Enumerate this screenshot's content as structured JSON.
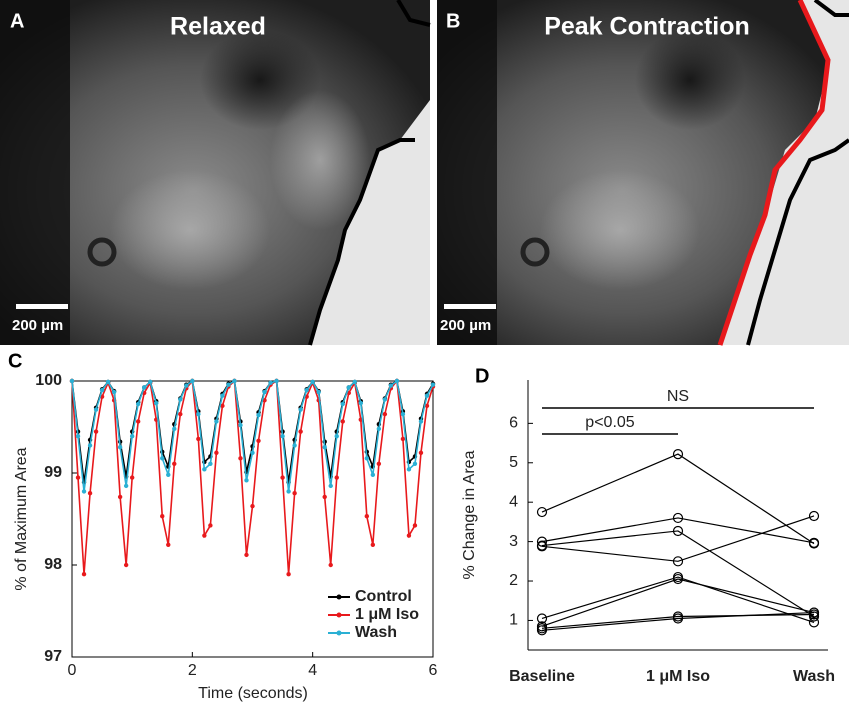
{
  "images": [
    {
      "label": "A",
      "title": "Relaxed",
      "scale_bar": "200 µm"
    },
    {
      "label": "B",
      "title": "Peak Contraction",
      "scale_bar": "200 µm"
    }
  ],
  "chart_data": [
    {
      "type": "line",
      "panel": "C",
      "xlabel": "Time (seconds)",
      "ylabel": "% of Maximum Area",
      "x": [
        0,
        0.1,
        0.2,
        0.3,
        0.4,
        0.5,
        0.6,
        0.7,
        0.8,
        0.9,
        1.0,
        1.1,
        1.2,
        1.3,
        1.4,
        1.5,
        1.6,
        1.7,
        1.8,
        1.9,
        2.0,
        2.1,
        2.2,
        2.3,
        2.4,
        2.5,
        2.6,
        2.7,
        2.8,
        2.9,
        3.0,
        3.1,
        3.2,
        3.3,
        3.4,
        3.5,
        3.6,
        3.7,
        3.8,
        3.9,
        4.0,
        4.1,
        4.2,
        4.3,
        4.4,
        4.5,
        4.6,
        4.7,
        4.8,
        4.9,
        5.0,
        5.1,
        5.2,
        5.3,
        5.4,
        5.5,
        5.6,
        5.7,
        5.8,
        5.9,
        6.0
      ],
      "series": [
        {
          "name": "Control",
          "color": "#000000",
          "values": [
            100,
            99.45,
            98.9,
            99.36,
            99.71,
            99.91,
            99.99,
            99.89,
            99.34,
            98.96,
            99.45,
            99.77,
            99.93,
            99.99,
            99.78,
            99.23,
            99.07,
            99.53,
            99.81,
            99.96,
            100,
            99.67,
            99.12,
            99.18,
            99.59,
            99.86,
            99.97,
            100,
            99.56,
            99.01,
            99.29,
            99.66,
            99.89,
            99.98,
            100,
            99.45,
            98.9,
            99.36,
            99.71,
            99.91,
            99.99,
            99.89,
            99.34,
            98.96,
            99.45,
            99.77,
            99.93,
            99.99,
            99.78,
            99.23,
            99.07,
            99.53,
            99.81,
            99.96,
            100,
            99.67,
            99.12,
            99.18,
            99.59,
            99.86,
            99.97
          ]
        },
        {
          "name": "1 μM Iso",
          "color": "#e8191c",
          "values": [
            100,
            98.95,
            97.9,
            98.78,
            99.45,
            99.83,
            99.98,
            99.79,
            98.74,
            98.0,
            98.95,
            99.56,
            99.87,
            99.98,
            99.58,
            98.53,
            98.22,
            99.1,
            99.64,
            99.92,
            100,
            99.37,
            98.32,
            98.43,
            99.22,
            99.73,
            99.94,
            100,
            99.16,
            98.11,
            98.64,
            99.35,
            99.79,
            99.96,
            100,
            98.95,
            97.9,
            98.78,
            99.45,
            99.83,
            99.98,
            99.79,
            98.74,
            98.0,
            98.95,
            99.56,
            99.87,
            99.98,
            99.58,
            98.53,
            98.22,
            99.1,
            99.64,
            99.92,
            100,
            99.37,
            98.32,
            98.43,
            99.22,
            99.73,
            99.94
          ]
        },
        {
          "name": "Wash",
          "color": "#2ab0d4",
          "values": [
            100,
            99.4,
            98.8,
            99.3,
            99.69,
            99.9,
            99.99,
            99.88,
            99.28,
            98.86,
            99.4,
            99.75,
            99.93,
            99.99,
            99.76,
            99.16,
            98.98,
            99.48,
            99.8,
            99.95,
            100,
            99.64,
            99.04,
            99.1,
            99.56,
            99.84,
            99.96,
            100,
            99.52,
            98.92,
            99.22,
            99.63,
            99.88,
            99.98,
            100,
            99.4,
            98.8,
            99.3,
            99.69,
            99.9,
            99.99,
            99.88,
            99.28,
            98.86,
            99.4,
            99.75,
            99.93,
            99.99,
            99.76,
            99.16,
            98.98,
            99.48,
            99.8,
            99.95,
            100,
            99.64,
            99.04,
            99.1,
            99.56,
            99.84,
            99.96
          ]
        }
      ],
      "xlim": [
        0,
        6
      ],
      "xticks": [
        0,
        2,
        4,
        6
      ],
      "ylim": [
        97,
        100
      ],
      "yticks": [
        97,
        98,
        99,
        100
      ],
      "frame": true,
      "legend": "lower right"
    },
    {
      "type": "line",
      "panel": "D",
      "ylabel": "% Change in Area",
      "categories": [
        "Baseline",
        "1 μM Iso",
        "Wash"
      ],
      "series": [
        {
          "color": "#000000",
          "values": [
            3.75,
            5.22,
            2.95
          ]
        },
        {
          "color": "#000000",
          "values": [
            3.0,
            3.6,
            2.97
          ]
        },
        {
          "color": "#000000",
          "values": [
            2.9,
            3.27,
            1.1
          ]
        },
        {
          "color": "#000000",
          "values": [
            2.88,
            2.5,
            3.65
          ]
        },
        {
          "color": "#000000",
          "values": [
            1.05,
            2.1,
            0.95
          ]
        },
        {
          "color": "#000000",
          "values": [
            0.85,
            2.05,
            1.2
          ]
        },
        {
          "color": "#000000",
          "values": [
            0.8,
            1.1,
            1.15
          ]
        },
        {
          "color": "#000000",
          "values": [
            0.75,
            1.05,
            1.2
          ]
        }
      ],
      "ylim": [
        0.25,
        7.1
      ],
      "yticks": [
        1,
        2,
        3,
        4,
        5,
        6
      ],
      "annotations": [
        "NS",
        "p<0.05"
      ],
      "frame": false
    }
  ]
}
